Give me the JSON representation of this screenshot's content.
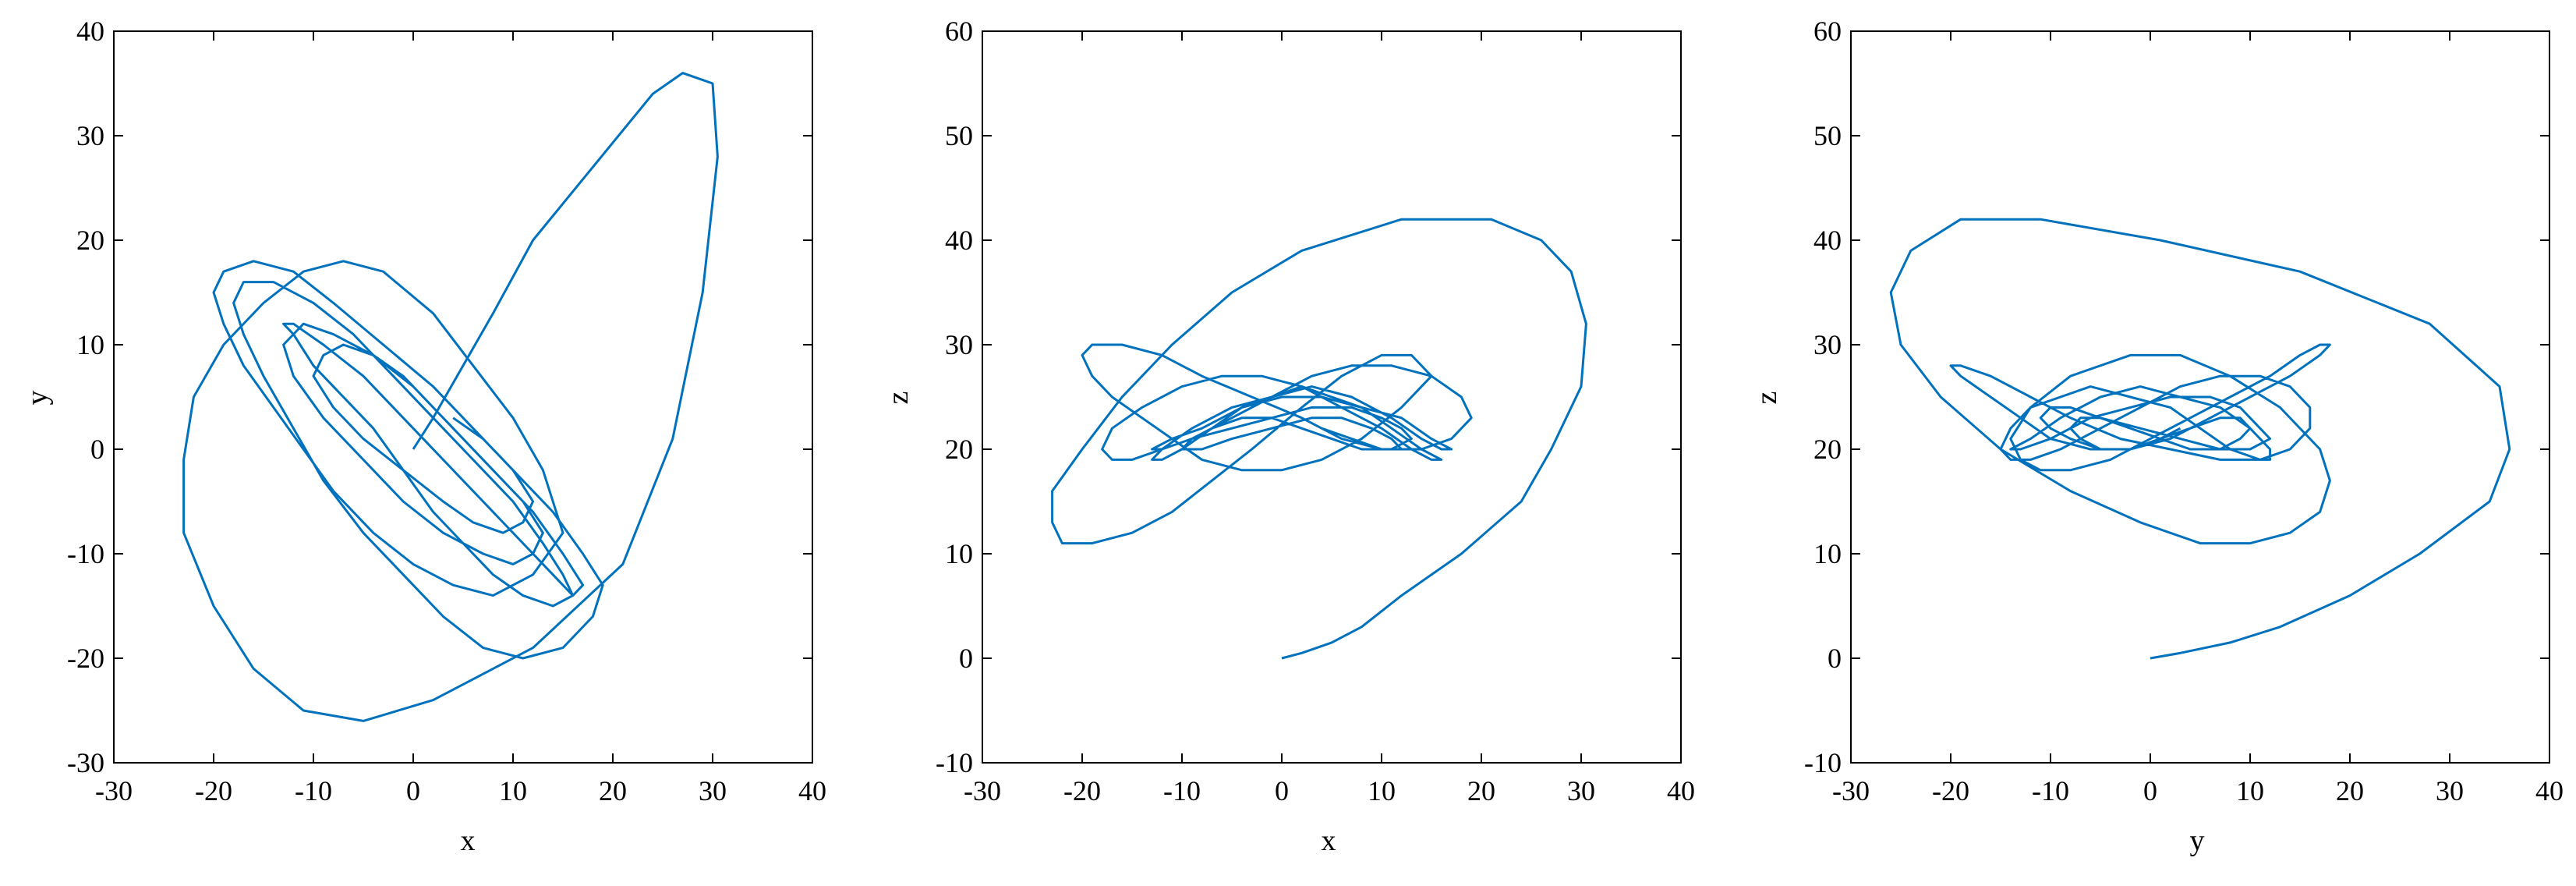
{
  "figure": {
    "color": "#0072BD",
    "axis_color": "#000000"
  },
  "chart_data": [
    {
      "type": "line",
      "xlabel": "x",
      "ylabel": "y",
      "xlim": [
        -30,
        40
      ],
      "ylim": [
        -30,
        40
      ],
      "xticks": [
        -30,
        -20,
        -10,
        0,
        10,
        20,
        30,
        40
      ],
      "yticks": [
        -30,
        -20,
        -10,
        0,
        10,
        20,
        30,
        40
      ],
      "grid": false,
      "series": [
        {
          "x": [
            0,
            2,
            5,
            8,
            12,
            18,
            24,
            27,
            30,
            30.5,
            29,
            26,
            21,
            12,
            2,
            -5,
            -11,
            -16,
            -20,
            -23,
            -23,
            -22,
            -19,
            -15,
            -11,
            -7,
            -3,
            2,
            6,
            10,
            13,
            15,
            12,
            8,
            4,
            0,
            -4,
            -8,
            -11,
            -14,
            -17,
            -19,
            -20,
            -19,
            -16,
            -12,
            -8,
            -3,
            2,
            6,
            10,
            14,
            17,
            19,
            18,
            15,
            11,
            7,
            3,
            -1,
            -5,
            -9,
            -12,
            -15,
            -17,
            -18,
            -17,
            -14,
            -10,
            -6,
            -2,
            2,
            6,
            10,
            13,
            15,
            16,
            14,
            11,
            8,
            5,
            2,
            -1,
            -4,
            -7,
            -10,
            -12,
            -13,
            -12,
            -9,
            -5,
            -1,
            3,
            7,
            11,
            14,
            16,
            17,
            15,
            12,
            8,
            4,
            0,
            -4,
            -8,
            -11,
            -13,
            -12,
            -9,
            -5,
            -1,
            3,
            7,
            10,
            12,
            13,
            11,
            8,
            5,
            2,
            -1,
            -4,
            -7,
            -9,
            -10,
            -8,
            -5,
            -1,
            3,
            6,
            9,
            11,
            12,
            10,
            7,
            4
          ],
          "y": [
            0,
            3,
            8,
            13,
            20,
            27,
            34,
            36,
            35,
            28,
            15,
            1,
            -11,
            -19,
            -24,
            -26,
            -25,
            -21,
            -15,
            -8,
            -1,
            5,
            10,
            14,
            17,
            18,
            17,
            13,
            8,
            3,
            -2,
            -8,
            -12,
            -14,
            -13,
            -11,
            -8,
            -4,
            0,
            4,
            8,
            12,
            15,
            17,
            18,
            17,
            14,
            10,
            6,
            2,
            -2,
            -6,
            -10,
            -13,
            -16,
            -19,
            -20,
            -19,
            -16,
            -12,
            -8,
            -3,
            2,
            7,
            11,
            14,
            16,
            16,
            14,
            11,
            7,
            3,
            -1,
            -5,
            -9,
            -12,
            -14,
            -15,
            -14,
            -12,
            -9,
            -6,
            -2,
            2,
            5,
            8,
            11,
            12,
            12,
            10,
            7,
            3,
            -1,
            -5,
            -9,
            -12,
            -14,
            -13,
            -10,
            -6,
            -2,
            2,
            6,
            9,
            11,
            12,
            10,
            7,
            3,
            -1,
            -5,
            -8,
            -10,
            -11,
            -10,
            -8,
            -5,
            -2,
            1,
            4,
            7,
            9,
            10,
            9,
            7,
            4,
            1,
            -2,
            -5,
            -7,
            -8,
            -7,
            -5,
            -2,
            1,
            3
          ],
          "z": [
            0,
            0.5,
            1.5,
            3,
            6,
            10,
            15,
            20,
            26,
            32,
            37,
            40,
            42,
            42,
            39,
            35,
            30,
            25,
            20,
            16,
            13,
            11,
            11,
            12,
            14,
            17,
            20,
            24,
            27,
            29,
            29,
            27,
            24,
            21,
            19,
            18,
            18,
            19,
            21,
            23,
            25,
            27,
            29,
            30,
            30,
            29,
            27,
            25,
            23,
            21,
            20,
            20,
            21,
            23,
            25,
            27,
            28,
            28,
            27,
            25,
            23,
            21,
            20,
            19,
            19,
            20,
            22,
            24,
            26,
            27,
            27,
            26,
            24,
            22,
            20,
            19,
            19,
            20,
            22,
            24,
            25,
            26,
            25,
            24,
            22,
            20,
            19,
            19,
            20,
            22,
            24,
            25,
            26,
            25,
            23,
            21,
            20,
            20,
            21,
            23,
            24,
            25,
            25,
            24,
            22,
            21,
            20,
            20,
            21,
            22,
            23,
            24,
            24,
            23,
            22,
            21,
            20,
            20,
            21,
            22,
            23,
            23,
            22,
            21,
            20,
            20,
            21,
            22,
            23,
            23,
            22,
            21,
            20,
            20,
            21,
            22
          ]
        }
      ]
    },
    {
      "type": "line",
      "xlabel": "x",
      "ylabel": "z",
      "xlim": [
        -30,
        40
      ],
      "ylim": [
        -10,
        60
      ],
      "xticks": [
        -30,
        -20,
        -10,
        0,
        10,
        20,
        30,
        40
      ],
      "yticks": [
        -10,
        0,
        10,
        20,
        30,
        40,
        50,
        60
      ],
      "grid": false,
      "series": "same as panel 1"
    },
    {
      "type": "line",
      "xlabel": "y",
      "ylabel": "z",
      "xlim": [
        -30,
        40
      ],
      "ylim": [
        -10,
        60
      ],
      "xticks": [
        -30,
        -20,
        -10,
        0,
        10,
        20,
        30,
        40
      ],
      "yticks": [
        -10,
        0,
        10,
        20,
        30,
        40,
        50,
        60
      ],
      "grid": false,
      "series": "same as panel 1"
    }
  ]
}
